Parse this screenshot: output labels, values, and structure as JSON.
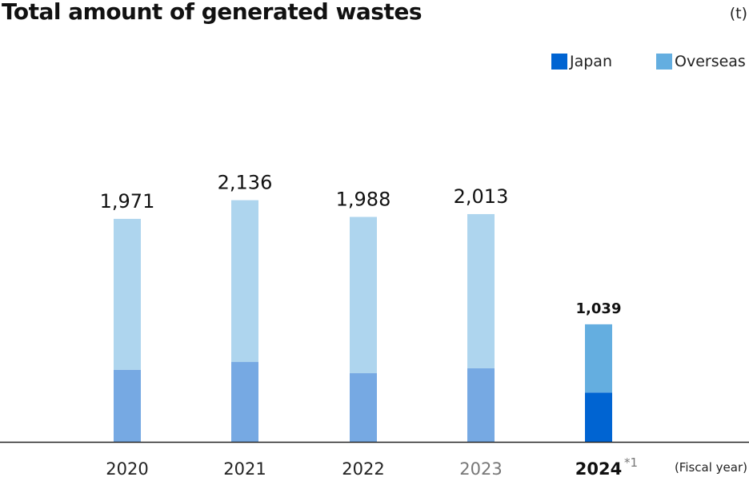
{
  "chart_data": {
    "type": "bar",
    "stacked": true,
    "title": "Total amount of generated wastes",
    "unit": "(t)",
    "xlabel": "(Fiscal year)",
    "categories": [
      "2020",
      "2021",
      "2022",
      "2023",
      "2024"
    ],
    "category_note": {
      "2024": "*1"
    },
    "totals": [
      "1,971",
      "2,136",
      "1,988",
      "2,013",
      "1,039"
    ],
    "series": [
      {
        "name": "Japan",
        "values": [
          636,
          706,
          607,
          650,
          436
        ],
        "color": "#0064D2",
        "faded_color": "#76A9E3"
      },
      {
        "name": "Overseas",
        "values": [
          1335,
          1430,
          1381,
          1363,
          603
        ],
        "color": "#64AEE0",
        "faded_color": "#AED5EE"
      }
    ],
    "highlighted_category": "2024",
    "grid": false,
    "legend": "top-right"
  }
}
